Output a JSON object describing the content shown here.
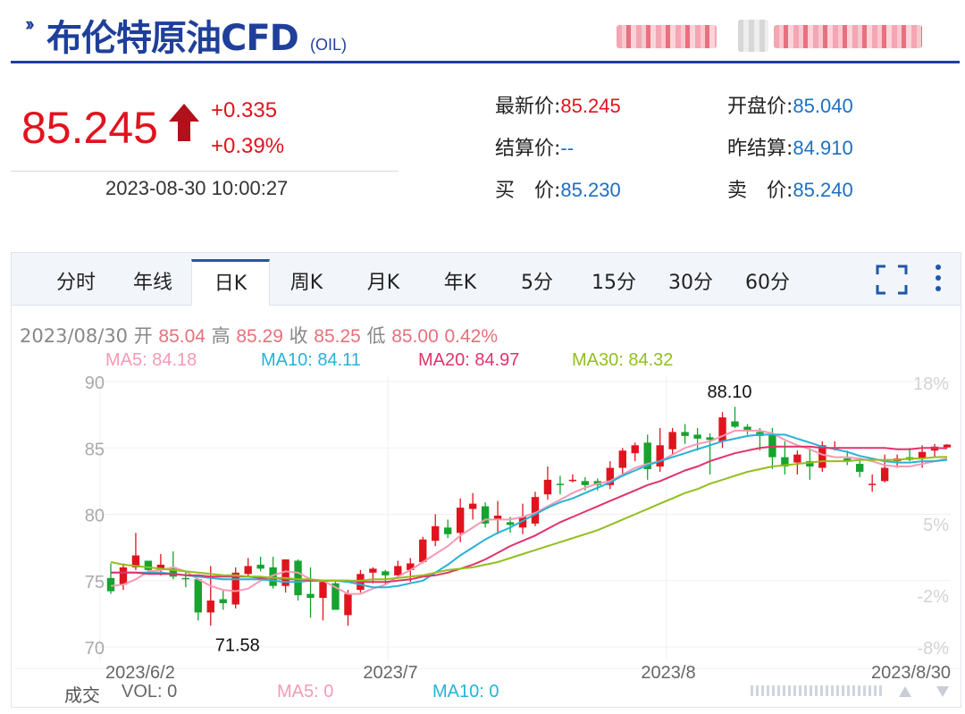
{
  "header": {
    "title": "布伦特原油CFD",
    "symbol": "(OIL)"
  },
  "quote": {
    "price": "85.245",
    "change": "+0.335",
    "change_pct": "+0.39%",
    "timestamp": "2023-08-30 10:00:27",
    "fields": [
      {
        "label": "最新价:",
        "value": "85.245",
        "tone": "red"
      },
      {
        "label": "开盘价:",
        "value": "85.040",
        "tone": "blue"
      },
      {
        "label": "结算价:",
        "value": "--",
        "tone": "blue"
      },
      {
        "label": "昨结算:",
        "value": "84.910",
        "tone": "blue"
      },
      {
        "label": "买  价:",
        "value": "85.230",
        "tone": "blue"
      },
      {
        "label": "卖  价:",
        "value": "85.240",
        "tone": "blue"
      }
    ]
  },
  "tabs": [
    "分时",
    "年线",
    "日K",
    "周K",
    "月K",
    "年K",
    "5分",
    "15分",
    "30分",
    "60分"
  ],
  "active_tab": "日K",
  "icons": {
    "fullscreen": "fullscreen-icon",
    "more": "more-vertical-icon"
  },
  "ohlc_bar": {
    "date": "2023/08/30",
    "open_label": "开",
    "open": "85.04",
    "high_label": "高",
    "high": "85.29",
    "close_label": "收",
    "close": "85.25",
    "low_label": "低",
    "low": "85.00",
    "pct": "0.42%"
  },
  "ma_legend": [
    {
      "label": "MA5: 84.18",
      "color": "#f49ab4"
    },
    {
      "label": "MA10: 84.11",
      "color": "#27b2d6"
    },
    {
      "label": "MA20: 84.97",
      "color": "#e0336a"
    },
    {
      "label": "MA30: 84.32",
      "color": "#92bf1d"
    }
  ],
  "volume_bar": {
    "title": "成交",
    "vol": "VOL: 0",
    "ma5": "MA5: 0",
    "ma10": "MA10: 0"
  },
  "chart_data": {
    "type": "candlestick",
    "y_ticks": [
      "90",
      "85",
      "80",
      "75",
      "70"
    ],
    "y_pct_ticks": [
      "18%",
      "5%",
      "-2%",
      "-8%"
    ],
    "x_ticks": [
      "2023/6/2",
      "2023/7",
      "2023/8",
      "2023/8/30"
    ],
    "ylim": [
      70,
      90
    ],
    "annotations": [
      {
        "text": "88.10",
        "value": 88.1
      },
      {
        "text": "71.58",
        "value": 71.58
      }
    ],
    "colors": {
      "up": "#e0141e",
      "down": "#16a32e"
    },
    "candles": [
      [
        75.2,
        76.3,
        74.0,
        74.2
      ],
      [
        74.7,
        76.3,
        74.3,
        76.0
      ],
      [
        76.0,
        78.6,
        75.8,
        76.9
      ],
      [
        76.5,
        76.5,
        75.5,
        75.8
      ],
      [
        75.8,
        77.0,
        75.4,
        76.2
      ],
      [
        76.0,
        77.2,
        75.1,
        75.3
      ],
      [
        75.2,
        75.7,
        74.5,
        75.1
      ],
      [
        75.1,
        75.2,
        72.0,
        72.6
      ],
      [
        72.6,
        76.1,
        71.6,
        73.5
      ],
      [
        73.6,
        74.3,
        72.8,
        73.3
      ],
      [
        73.2,
        76.0,
        72.9,
        75.6
      ],
      [
        75.5,
        76.7,
        75.3,
        76.1
      ],
      [
        76.2,
        76.8,
        75.7,
        75.9
      ],
      [
        76.0,
        76.8,
        74.4,
        74.6
      ],
      [
        74.6,
        76.6,
        74.1,
        76.6
      ],
      [
        76.5,
        76.6,
        73.5,
        73.9
      ],
      [
        74.0,
        76.0,
        72.2,
        73.7
      ],
      [
        73.7,
        75.0,
        72.0,
        74.9
      ],
      [
        74.8,
        75.0,
        72.8,
        72.8
      ],
      [
        72.4,
        74.3,
        71.6,
        74.0
      ],
      [
        74.3,
        75.8,
        74.1,
        75.5
      ],
      [
        75.6,
        76.0,
        74.8,
        75.9
      ],
      [
        75.7,
        75.8,
        74.7,
        75.4
      ],
      [
        75.4,
        76.5,
        75.2,
        76.1
      ],
      [
        75.8,
        76.7,
        74.9,
        76.3
      ],
      [
        76.4,
        78.3,
        76.3,
        78.1
      ],
      [
        78.0,
        80.0,
        77.6,
        79.1
      ],
      [
        79.0,
        79.6,
        78.2,
        78.5
      ],
      [
        78.6,
        81.2,
        77.9,
        80.5
      ],
      [
        80.4,
        81.6,
        79.6,
        80.8
      ],
      [
        80.6,
        80.9,
        79.0,
        79.3
      ],
      [
        79.6,
        81.0,
        78.5,
        79.9
      ],
      [
        79.4,
        79.8,
        78.6,
        79.2
      ],
      [
        79.0,
        80.8,
        78.5,
        79.8
      ],
      [
        79.3,
        81.7,
        79.1,
        81.3
      ],
      [
        81.5,
        83.6,
        81.1,
        82.6
      ],
      [
        82.3,
        82.9,
        81.5,
        82.2
      ],
      [
        82.5,
        83.0,
        82.4,
        82.6
      ],
      [
        82.5,
        82.8,
        81.8,
        82.2
      ],
      [
        82.5,
        82.7,
        81.8,
        82.2
      ],
      [
        82.2,
        84.0,
        81.9,
        83.5
      ],
      [
        83.5,
        85.0,
        83.0,
        84.8
      ],
      [
        84.6,
        85.4,
        84.0,
        85.2
      ],
      [
        85.4,
        86.0,
        82.6,
        83.4
      ],
      [
        83.6,
        86.5,
        83.2,
        85.2
      ],
      [
        84.9,
        86.5,
        84.5,
        86.2
      ],
      [
        86.2,
        86.8,
        85.3,
        85.9
      ],
      [
        86.0,
        86.5,
        84.8,
        85.7
      ],
      [
        85.8,
        86.1,
        83.0,
        85.6
      ],
      [
        85.5,
        87.7,
        85.0,
        87.3
      ],
      [
        87.0,
        88.1,
        86.5,
        86.6
      ],
      [
        86.6,
        86.8,
        86.0,
        86.3
      ],
      [
        86.2,
        86.5,
        84.8,
        85.9
      ],
      [
        86.0,
        86.5,
        83.4,
        84.3
      ],
      [
        84.3,
        85.5,
        83.0,
        83.6
      ],
      [
        83.9,
        84.8,
        83.0,
        84.5
      ],
      [
        84.0,
        85.0,
        82.6,
        83.6
      ],
      [
        83.5,
        85.5,
        83.2,
        85.2
      ],
      [
        85.0,
        85.5,
        84.8,
        85.0
      ],
      [
        84.2,
        84.8,
        83.7,
        84.0
      ],
      [
        83.8,
        84.2,
        82.8,
        83.2
      ],
      [
        82.2,
        83.0,
        81.7,
        82.3
      ],
      [
        82.5,
        84.5,
        82.4,
        83.5
      ],
      [
        84.0,
        84.5,
        83.5,
        84.2
      ],
      [
        84.3,
        85.0,
        84.0,
        84.1
      ],
      [
        84.2,
        85.2,
        83.5,
        84.7
      ],
      [
        84.8,
        85.3,
        84.3,
        85.1
      ],
      [
        85.04,
        85.29,
        85.0,
        85.25
      ]
    ],
    "ma_series": {
      "MA5": [
        74.6,
        74.7,
        75.1,
        75.7,
        75.8,
        76.0,
        75.7,
        75.1,
        74.6,
        74.3,
        74.2,
        74.4,
        75.0,
        75.4,
        75.7,
        75.6,
        75.1,
        75.0,
        74.5,
        74.0,
        74.0,
        74.4,
        74.7,
        75.3,
        75.8,
        76.4,
        77.0,
        77.6,
        78.4,
        79.0,
        79.6,
        79.6,
        79.6,
        79.8,
        80.1,
        80.6,
        81.1,
        81.6,
        82.0,
        82.3,
        82.5,
        83.0,
        83.5,
        83.8,
        84.0,
        84.5,
        85.0,
        85.3,
        85.5,
        85.9,
        86.3,
        86.3,
        86.3,
        86.1,
        85.6,
        85.2,
        84.9,
        84.5,
        84.3,
        84.3,
        84.2,
        84.0,
        83.7,
        83.6,
        83.6,
        83.8,
        84.0,
        84.2
      ],
      "MA10": [
        75.6,
        75.6,
        75.6,
        75.6,
        75.6,
        75.5,
        75.4,
        75.3,
        75.2,
        75.1,
        75.1,
        75.1,
        75.1,
        75.0,
        74.9,
        74.9,
        75.0,
        75.0,
        75.0,
        74.9,
        74.7,
        74.5,
        74.5,
        74.6,
        74.8,
        75.0,
        75.6,
        76.2,
        76.9,
        77.5,
        78.1,
        78.6,
        79.0,
        79.5,
        80.0,
        80.5,
        80.9,
        81.2,
        81.6,
        82.0,
        82.4,
        82.9,
        83.3,
        83.7,
        84.0,
        84.3,
        84.6,
        84.9,
        85.2,
        85.5,
        85.7,
        85.9,
        86.0,
        86.0,
        86.0,
        85.7,
        85.4,
        85.1,
        84.9,
        84.7,
        84.4,
        84.2,
        84.0,
        83.9,
        83.9,
        84.0,
        84.0,
        84.1
      ],
      "MA20": [
        75.6,
        75.6,
        75.6,
        75.5,
        75.5,
        75.5,
        75.4,
        75.4,
        75.3,
        75.3,
        75.3,
        75.3,
        75.2,
        75.2,
        75.1,
        75.1,
        75.0,
        75.0,
        75.0,
        75.0,
        74.9,
        74.9,
        74.9,
        75.0,
        75.1,
        75.3,
        75.4,
        75.6,
        75.9,
        76.2,
        76.6,
        77.1,
        77.6,
        78.0,
        78.4,
        78.9,
        79.4,
        79.8,
        80.2,
        80.6,
        81.0,
        81.4,
        81.8,
        82.2,
        82.5,
        82.9,
        83.3,
        83.6,
        84.0,
        84.3,
        84.6,
        84.8,
        85.0,
        85.1,
        85.1,
        85.1,
        85.1,
        85.0,
        85.0,
        85.0,
        85.0,
        85.0,
        85.0,
        84.9,
        84.9,
        85.0,
        85.0,
        84.97
      ],
      "MA30": [
        76.4,
        76.2,
        76.1,
        76.0,
        75.9,
        75.8,
        75.7,
        75.6,
        75.5,
        75.4,
        75.4,
        75.3,
        75.3,
        75.2,
        75.2,
        75.1,
        75.1,
        75.0,
        75.0,
        75.0,
        75.0,
        75.1,
        75.1,
        75.2,
        75.3,
        75.4,
        75.6,
        75.8,
        75.9,
        76.0,
        76.2,
        76.4,
        76.7,
        77.0,
        77.3,
        77.6,
        77.9,
        78.2,
        78.5,
        78.8,
        79.2,
        79.6,
        80.0,
        80.4,
        80.8,
        81.2,
        81.6,
        81.9,
        82.3,
        82.6,
        82.9,
        83.2,
        83.4,
        83.6,
        83.7,
        83.8,
        83.9,
        84.0,
        84.0,
        84.0,
        84.1,
        84.1,
        84.1,
        84.1,
        84.2,
        84.2,
        84.3,
        84.32
      ]
    }
  }
}
